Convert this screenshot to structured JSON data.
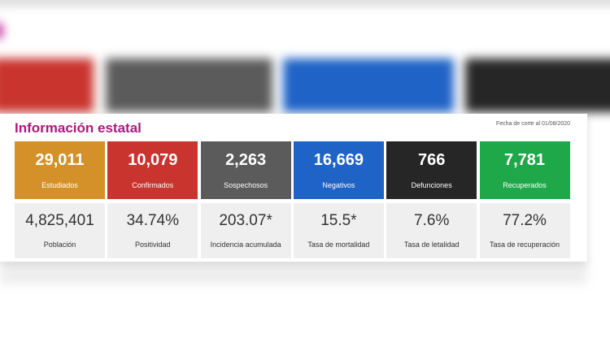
{
  "header": {
    "title": "Información estatal",
    "date": "Fecha de corte al 01/08/2020"
  },
  "cards": [
    {
      "value": "29,011",
      "label": "Estudiados",
      "color": "#d4912a"
    },
    {
      "value": "10,079",
      "label": "Confirmados",
      "color": "#c9342e"
    },
    {
      "value": "2,263",
      "label": "Sospechosos",
      "color": "#5b5b5b"
    },
    {
      "value": "16,669",
      "label": "Negativos",
      "color": "#1f63c6"
    },
    {
      "value": "766",
      "label": "Defunciones",
      "color": "#262626"
    },
    {
      "value": "7,781",
      "label": "Recuperados",
      "color": "#1fa84a"
    }
  ],
  "stats": [
    {
      "value": "4,825,401",
      "label": "Población"
    },
    {
      "value": "34.74%",
      "label": "Positividad"
    },
    {
      "value": "203.07*",
      "label": "Incidencia acumulada"
    },
    {
      "value": "15.5*",
      "label": "Tasa de mortalidad"
    },
    {
      "value": "7.6%",
      "label": "Tasa de letalidad"
    },
    {
      "value": "77.2%",
      "label": "Tasa de recuperación"
    }
  ]
}
